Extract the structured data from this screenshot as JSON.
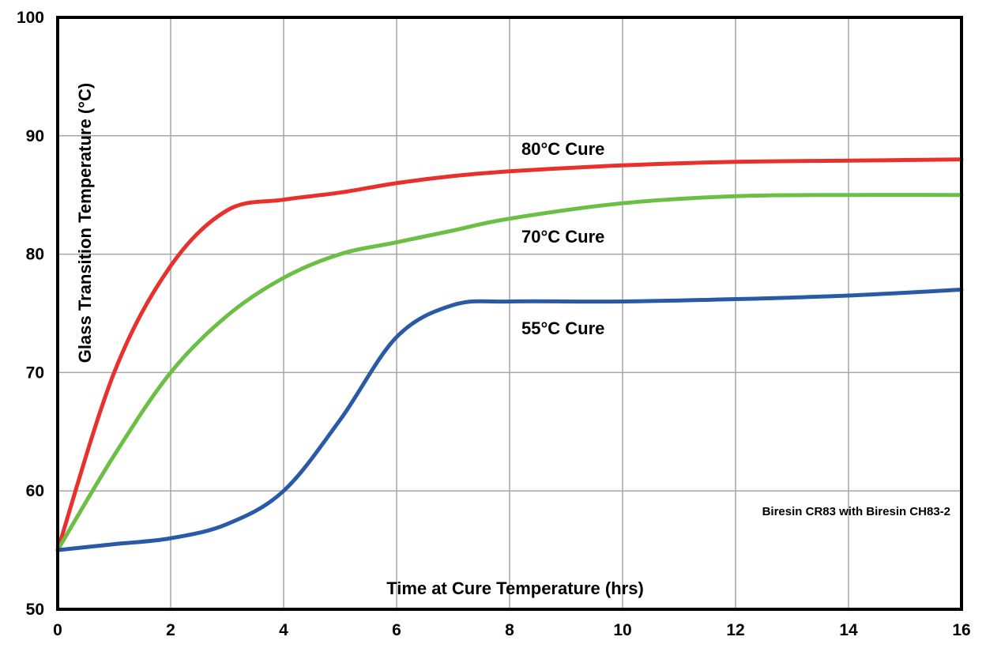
{
  "chart_data": {
    "type": "line",
    "title": "",
    "xlabel": "Time at Cure Temperature (hrs)",
    "ylabel": "Glass Transition Temperature (°C)",
    "xlim": [
      0,
      16
    ],
    "ylim": [
      50,
      100
    ],
    "xticks": [
      "0",
      "2",
      "4",
      "6",
      "8",
      "10",
      "12",
      "14",
      "16"
    ],
    "yticks": [
      "50",
      "60",
      "70",
      "80",
      "90",
      "100"
    ],
    "grid": true,
    "legend": "none",
    "annotations": [
      {
        "text": "Biresin CR83 with Biresin CH83-2"
      }
    ],
    "series": [
      {
        "name": "80°C Cure",
        "color": "#e8302d",
        "x": [
          0,
          1,
          2,
          3,
          4,
          5,
          6,
          7,
          8,
          10,
          12,
          14,
          16
        ],
        "y": [
          55,
          70,
          79,
          83.7,
          84.6,
          85.2,
          86.0,
          86.6,
          87.0,
          87.5,
          87.8,
          87.9,
          88.0
        ]
      },
      {
        "name": "70°C Cure",
        "color": "#6cbf45",
        "x": [
          0,
          1,
          2,
          3,
          4,
          5,
          6,
          7,
          8,
          10,
          12,
          14,
          16
        ],
        "y": [
          55,
          63,
          70,
          74.8,
          78,
          80,
          81,
          82,
          83,
          84.3,
          84.9,
          85.0,
          85.0
        ]
      },
      {
        "name": "55°C Cure",
        "color": "#2a5aa6",
        "x": [
          0,
          1,
          2,
          3,
          4,
          5,
          6,
          7,
          8,
          10,
          12,
          14,
          16
        ],
        "y": [
          55,
          55.5,
          56,
          57.2,
          60,
          66,
          73,
          75.7,
          76,
          76,
          76.2,
          76.5,
          77.0
        ]
      }
    ]
  }
}
